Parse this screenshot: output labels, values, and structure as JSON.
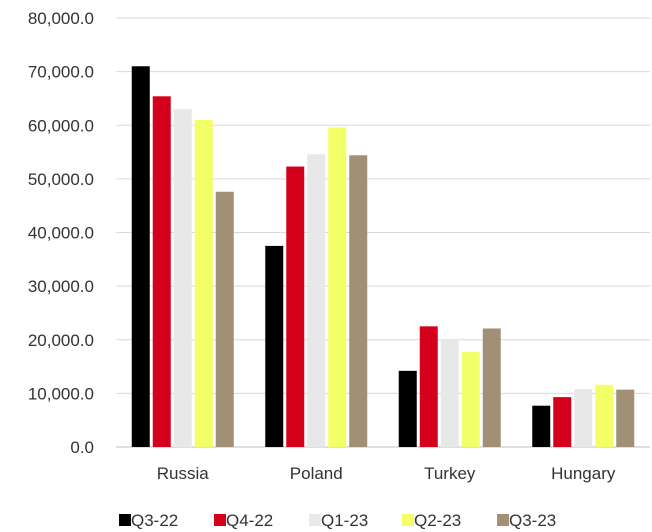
{
  "chart_data": {
    "type": "bar",
    "categories": [
      "Russia",
      "Poland",
      "Turkey",
      "Hungary"
    ],
    "series": [
      {
        "name": "Q3-22",
        "color": "#000000",
        "values": [
          71000,
          37500,
          14200,
          7700
        ]
      },
      {
        "name": "Q4-22",
        "color": "#d5001c",
        "values": [
          65400,
          52300,
          22500,
          9300
        ]
      },
      {
        "name": "Q1-23",
        "color": "#e8e8e8",
        "values": [
          63000,
          54600,
          20000,
          10800
        ]
      },
      {
        "name": "Q2-23",
        "color": "#f3ff66",
        "values": [
          61000,
          59600,
          17700,
          11600
        ]
      },
      {
        "name": "Q3-23",
        "color": "#a19076",
        "values": [
          47600,
          54400,
          22100,
          10700
        ]
      }
    ],
    "y_ticks": [
      "0.0",
      "10,000.0",
      "20,000.0",
      "30,000.0",
      "40,000.0",
      "50,000.0",
      "60,000.0",
      "70,000.0",
      "80,000.0"
    ],
    "ylim": [
      0,
      80000
    ],
    "grid": true,
    "legend_position": "bottom",
    "title": "",
    "xlabel": "",
    "ylabel": ""
  }
}
